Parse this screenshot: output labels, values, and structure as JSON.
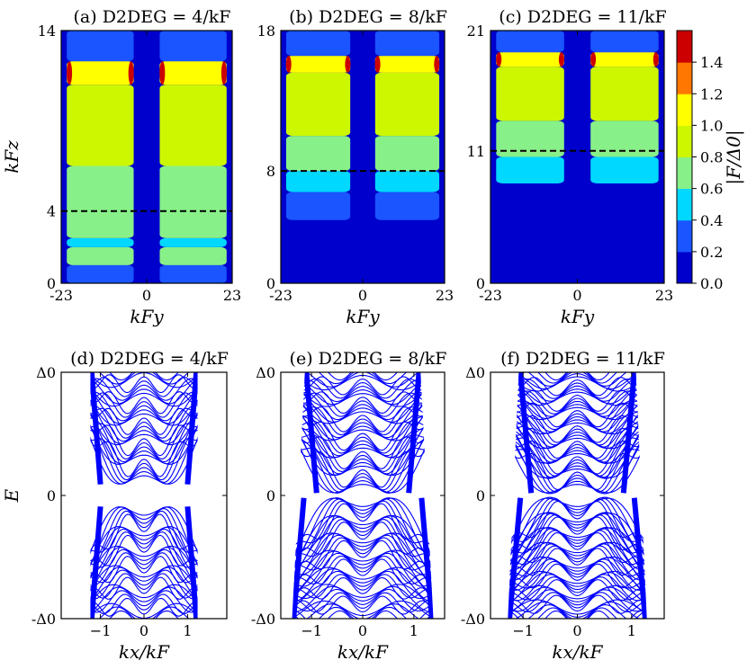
{
  "figure": {
    "colorbar": {
      "label": "|F/Δ0|",
      "ticks": [
        "0.0",
        "0.2",
        "0.4",
        "0.6",
        "0.8",
        "1.0",
        "1.2",
        "1.4"
      ],
      "levels": [
        0,
        0.2,
        0.4,
        0.6,
        0.8,
        1.0,
        1.2,
        1.4
      ],
      "colors": [
        "#0000cc",
        "#1a55ff",
        "#00d8ff",
        "#88f088",
        "#ccf700",
        "#ffff00",
        "#ff7700",
        "#cc0000"
      ]
    },
    "line_color": "#0000ff"
  },
  "chart_data": [
    {
      "type": "heatmap",
      "title": "(a) D2DEG = 4/kF",
      "xlabel": "kFy",
      "ylabel": "kFz",
      "xlim": [
        -23,
        23
      ],
      "ylim": [
        0,
        14
      ],
      "x_ticks": [
        "-23",
        "0",
        "23"
      ],
      "y_ticks": [
        "0",
        "4",
        "14"
      ],
      "y_tick_values": [
        0,
        4,
        14
      ],
      "dashed_line_y": 4,
      "regions": [
        {
          "y_start": 0,
          "y_end": 1.0,
          "value": 0.3
        },
        {
          "y_start": 1.0,
          "y_end": 2.0,
          "value": 0.7
        },
        {
          "y_start": 2.0,
          "y_end": 2.5,
          "value": 0.5
        },
        {
          "y_start": 2.5,
          "y_end": 6.5,
          "value": 0.7
        },
        {
          "y_start": 6.5,
          "y_end": 11.0,
          "value": 0.9
        },
        {
          "y_start": 11.0,
          "y_end": 12.3,
          "value": 1.1
        },
        {
          "y_start": 12.3,
          "y_end": 14,
          "value": 0.3
        }
      ]
    },
    {
      "type": "heatmap",
      "title": "(b) D2DEG = 8/kF",
      "xlabel": "kFy",
      "ylabel": "",
      "xlim": [
        -23,
        23
      ],
      "ylim": [
        0,
        18
      ],
      "x_ticks": [
        "-23",
        "0",
        "23"
      ],
      "y_ticks": [
        "0",
        "8",
        "18"
      ],
      "y_tick_values": [
        0,
        8,
        18
      ],
      "dashed_line_y": 8,
      "regions": [
        {
          "y_start": 0,
          "y_end": 4.5,
          "value": 0.1
        },
        {
          "y_start": 4.5,
          "y_end": 6.5,
          "value": 0.3
        },
        {
          "y_start": 6.5,
          "y_end": 8.0,
          "value": 0.5
        },
        {
          "y_start": 8.0,
          "y_end": 10.5,
          "value": 0.7
        },
        {
          "y_start": 10.5,
          "y_end": 15.0,
          "value": 0.9
        },
        {
          "y_start": 15.0,
          "y_end": 16.2,
          "value": 1.1
        },
        {
          "y_start": 16.2,
          "y_end": 18,
          "value": 0.3
        }
      ]
    },
    {
      "type": "heatmap",
      "title": "(c) D2DEG = 11/kF",
      "xlabel": "kFy",
      "ylabel": "",
      "xlim": [
        -23,
        23
      ],
      "ylim": [
        0,
        21
      ],
      "x_ticks": [
        "-23",
        "0",
        "23"
      ],
      "y_ticks": [
        "0",
        "11",
        "21"
      ],
      "y_tick_values": [
        0,
        11,
        21
      ],
      "dashed_line_y": 11,
      "regions": [
        {
          "y_start": 0,
          "y_end": 8.3,
          "value": 0.1
        },
        {
          "y_start": 8.3,
          "y_end": 10.5,
          "value": 0.5
        },
        {
          "y_start": 10.5,
          "y_end": 13.5,
          "value": 0.7
        },
        {
          "y_start": 13.5,
          "y_end": 18.0,
          "value": 0.9
        },
        {
          "y_start": 18.0,
          "y_end": 19.2,
          "value": 1.1
        },
        {
          "y_start": 19.2,
          "y_end": 21,
          "value": 0.3
        }
      ]
    },
    {
      "type": "line",
      "title": "(d) D2DEG = 4/kF",
      "xlabel": "kx/kF",
      "ylabel": "E",
      "xlim": [
        -1.9,
        1.9
      ],
      "ylim": [
        -1,
        1
      ],
      "x_ticks": [
        "−1",
        "0",
        "1"
      ],
      "y_ticks": [
        "-Δ0",
        "0",
        "Δ0"
      ],
      "band_halfwidth_top": 1.15,
      "band_halfwidth_bottom": 1.15,
      "gap": 0.07,
      "bands": 28
    },
    {
      "type": "line",
      "title": "(e) D2DEG = 8/kF",
      "xlabel": "kx/kF",
      "ylabel": "",
      "xlim": [
        -1.6,
        1.6
      ],
      "ylim": [
        -1,
        1
      ],
      "x_ticks": [
        "−1",
        "0",
        "1"
      ],
      "y_ticks": [
        "-Δ0",
        "0",
        "Δ0"
      ],
      "band_halfwidth_top": 1.05,
      "band_halfwidth_bottom": 1.3,
      "gap": 0.0,
      "bands": 34
    },
    {
      "type": "line",
      "title": "(f) D2DEG = 11/kF",
      "xlabel": "kx/kF",
      "ylabel": "",
      "xlim": [
        -1.6,
        1.6
      ],
      "ylim": [
        -1,
        1
      ],
      "x_ticks": [
        "−1",
        "0",
        "1"
      ],
      "y_ticks": [
        "-Δ0",
        "0",
        "Δ0"
      ],
      "band_halfwidth_top": 1.0,
      "band_halfwidth_bottom": 1.2,
      "gap": 0.0,
      "bands": 40
    }
  ]
}
